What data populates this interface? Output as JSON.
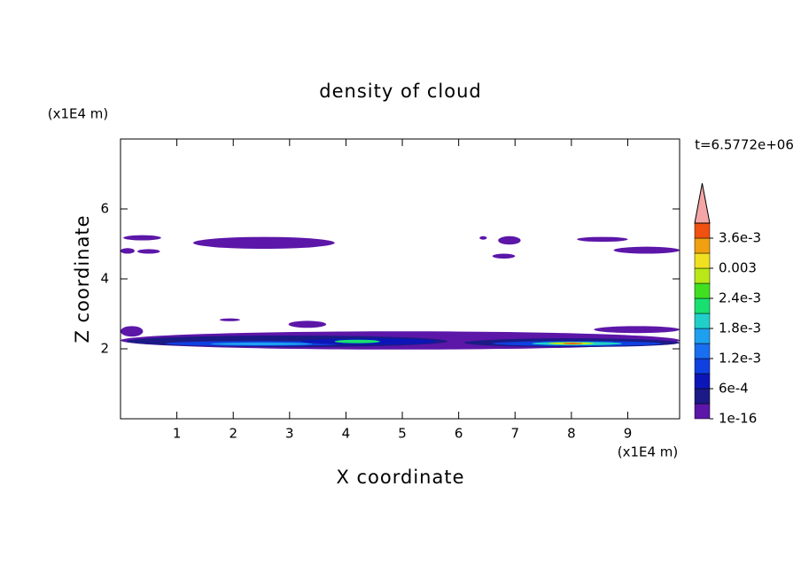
{
  "chart_data": {
    "type": "contour",
    "title": "density of cloud",
    "x_label": "X coordinate",
    "y_label": "Z coordinate",
    "x_unit": "(x1E4 m)",
    "y_unit": "(x1E4 m)",
    "time_label": "t=6.5772e+06",
    "xlim": [
      0,
      9.92
    ],
    "ylim": [
      0,
      8
    ],
    "xticks": [
      1,
      2,
      3,
      4,
      5,
      6,
      7,
      8,
      9
    ],
    "yticks": [
      2,
      4,
      6
    ],
    "clim": [
      0,
      0.0039
    ],
    "cticks": [
      {
        "value": 1e-16,
        "label": "1e-16"
      },
      {
        "value": 0.0006,
        "label": "6e-4"
      },
      {
        "value": 0.0012,
        "label": "1.2e-3"
      },
      {
        "value": 0.0018,
        "label": "1.8e-3"
      },
      {
        "value": 0.0024,
        "label": "2.4e-3"
      },
      0.003,
      {
        "value": 0.0036,
        "label": "3.6e-3"
      }
    ],
    "colors": [
      "#5c16a8",
      "#1c1a86",
      "#0c16b8",
      "#1040e0",
      "#1a6ef0",
      "#1ea0f0",
      "#20d0c8",
      "#18e070",
      "#40e020",
      "#b8e818",
      "#f0e020",
      "#f0a010",
      "#f05010"
    ],
    "extend_color": "#f4a6a6",
    "regions": [
      {
        "x": [
          0.05,
          0.72
        ],
        "z": [
          5.1,
          5.25
        ],
        "value": 0.0001
      },
      {
        "x": [
          0.0,
          0.25
        ],
        "z": [
          4.72,
          4.88
        ],
        "value": 0.0001
      },
      {
        "x": [
          0.3,
          0.7
        ],
        "z": [
          4.72,
          4.85
        ],
        "value": 0.0001
      },
      {
        "x": [
          1.29,
          3.8
        ],
        "z": [
          4.86,
          5.2
        ],
        "value": 0.0001
      },
      {
        "x": [
          6.37,
          6.5
        ],
        "z": [
          5.12,
          5.22
        ],
        "value": 0.0001
      },
      {
        "x": [
          6.7,
          7.1
        ],
        "z": [
          4.98,
          5.22
        ],
        "value": 0.0001
      },
      {
        "x": [
          6.6,
          7.0
        ],
        "z": [
          4.58,
          4.72
        ],
        "value": 0.0001
      },
      {
        "x": [
          8.1,
          9.0
        ],
        "z": [
          5.06,
          5.2
        ],
        "value": 0.0001
      },
      {
        "x": [
          8.75,
          9.92
        ],
        "z": [
          4.72,
          4.92
        ],
        "value": 0.0001
      },
      {
        "x": [
          1.76,
          2.12
        ],
        "z": [
          2.79,
          2.87
        ],
        "value": 0.0001
      },
      {
        "x": [
          2.98,
          3.65
        ],
        "z": [
          2.6,
          2.8
        ],
        "value": 0.0001
      },
      {
        "x": [
          0.0,
          0.4
        ],
        "z": [
          2.35,
          2.65
        ],
        "value": 0.0001
      },
      {
        "x": [
          8.4,
          9.92
        ],
        "z": [
          2.45,
          2.65
        ],
        "value": 0.0001
      },
      {
        "x": [
          0.0,
          9.92
        ],
        "z": [
          1.98,
          2.5
        ],
        "value": 0.0001
      },
      {
        "x": [
          0.1,
          5.8
        ],
        "z": [
          2.05,
          2.38
        ],
        "value": 0.0004
      },
      {
        "x": [
          6.1,
          9.92
        ],
        "z": [
          2.05,
          2.3
        ],
        "value": 0.0004
      },
      {
        "x": [
          0.8,
          4.0
        ],
        "z": [
          2.08,
          2.22
        ],
        "value": 0.0009
      },
      {
        "x": [
          3.2,
          5.6
        ],
        "z": [
          2.12,
          2.3
        ],
        "value": 0.0008
      },
      {
        "x": [
          6.6,
          9.6
        ],
        "z": [
          2.08,
          2.22
        ],
        "value": 0.001
      },
      {
        "x": [
          1.6,
          3.4
        ],
        "z": [
          2.1,
          2.18
        ],
        "value": 0.0016
      },
      {
        "x": [
          3.8,
          4.6
        ],
        "z": [
          2.16,
          2.26
        ],
        "value": 0.0021
      },
      {
        "x": [
          7.3,
          8.9
        ],
        "z": [
          2.1,
          2.2
        ],
        "value": 0.0019
      },
      {
        "x": [
          7.6,
          8.4
        ],
        "z": [
          2.12,
          2.19
        ],
        "value": 0.0028
      },
      {
        "x": [
          7.85,
          8.2
        ],
        "z": [
          2.13,
          2.17
        ],
        "value": 0.0037
      }
    ]
  }
}
